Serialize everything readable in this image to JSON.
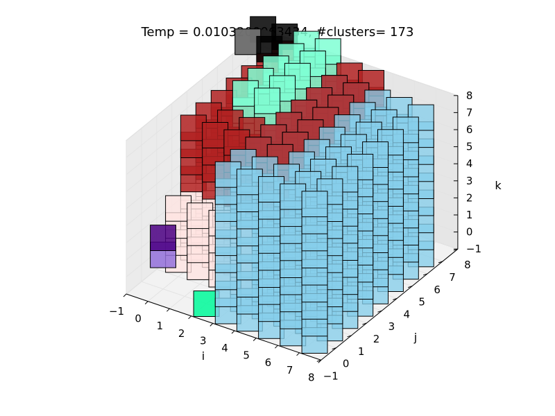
{
  "chart_data": {
    "type": "voxel-scatter-3d",
    "title": "Temp = 0.0103200063434, #clusters= 173",
    "xlabel": "i",
    "ylabel": "j",
    "zlabel": "k",
    "xlim": [
      -1,
      8
    ],
    "ylim": [
      -1,
      8
    ],
    "zlim": [
      -1,
      8
    ],
    "ticks": [
      -1,
      0,
      1,
      2,
      3,
      4,
      5,
      6,
      7,
      8
    ],
    "grid": true,
    "groups": [
      {
        "color": "#87CEEB",
        "note": "sky blue block",
        "i": [
          3,
          7
        ],
        "j": [
          0,
          7
        ],
        "k": [
          -1,
          7
        ]
      },
      {
        "color": "#B22222",
        "note": "dark red top layer",
        "i": [
          0,
          4
        ],
        "j": [
          2,
          8
        ],
        "k": [
          4,
          7
        ]
      },
      {
        "color": "#F08080",
        "note": "light red",
        "i": [
          2,
          4
        ],
        "j": [
          3,
          6
        ],
        "k": [
          2,
          4
        ]
      },
      {
        "color": "#FFE4E1",
        "note": "misty rose",
        "i": [
          0,
          3
        ],
        "j": [
          1,
          5
        ],
        "k": [
          0,
          3
        ]
      },
      {
        "color": "#4B0082",
        "note": "indigo",
        "i": [
          0,
          0
        ],
        "j": [
          0,
          0
        ],
        "k": [
          2,
          2
        ]
      },
      {
        "color": "#9370DB",
        "note": "medium purple",
        "i": [
          0,
          0
        ],
        "j": [
          0,
          0
        ],
        "k": [
          1,
          1
        ]
      },
      {
        "color": "#00FA9A",
        "note": "spring green",
        "i": [
          2,
          2
        ],
        "j": [
          0,
          0
        ],
        "k": [
          -1,
          -1
        ]
      },
      {
        "color": "#7FFFD4",
        "note": "aquamarine",
        "i": [
          1,
          2
        ],
        "j": [
          4,
          8
        ],
        "k": [
          6,
          8
        ]
      },
      {
        "color": "#000000",
        "note": "black",
        "i": [
          -1,
          0
        ],
        "j": [
          7,
          8
        ],
        "k": [
          8,
          8
        ]
      },
      {
        "color": "#808080",
        "note": "gray",
        "i": [
          -1,
          -1
        ],
        "j": [
          7,
          7
        ],
        "k": [
          8,
          8
        ]
      }
    ]
  }
}
